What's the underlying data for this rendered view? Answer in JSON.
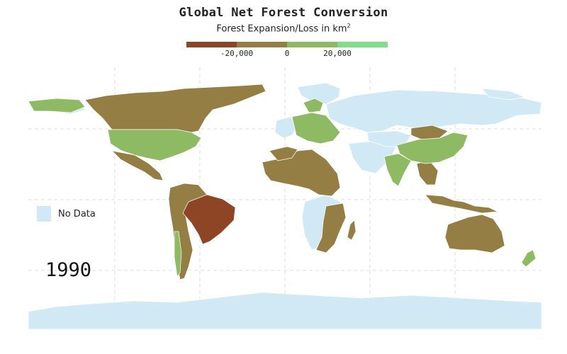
{
  "header": {
    "title": "Global Net Forest Conversion",
    "subtitle_prefix": "Forest Expansion/Loss in km",
    "subtitle_sup": "2"
  },
  "scale": {
    "colors": [
      "#8d4526",
      "#957e44",
      "#8dba63",
      "#80dd88"
    ],
    "ticks": [
      {
        "label": "-20,000",
        "value": -20000
      },
      {
        "label": "0",
        "value": 0
      },
      {
        "label": "20,000",
        "value": 20000
      }
    ],
    "range": [
      -40000,
      40000
    ]
  },
  "legend": {
    "nodata_label": "No Data",
    "nodata_color": "#d0e9f5"
  },
  "year": "1990",
  "colors": {
    "gain_light": "#8dba63",
    "loss": "#957e44",
    "loss_heavy": "#8d4526",
    "no_data": "#d0e9f5",
    "grid": "#dcdcdc"
  }
}
